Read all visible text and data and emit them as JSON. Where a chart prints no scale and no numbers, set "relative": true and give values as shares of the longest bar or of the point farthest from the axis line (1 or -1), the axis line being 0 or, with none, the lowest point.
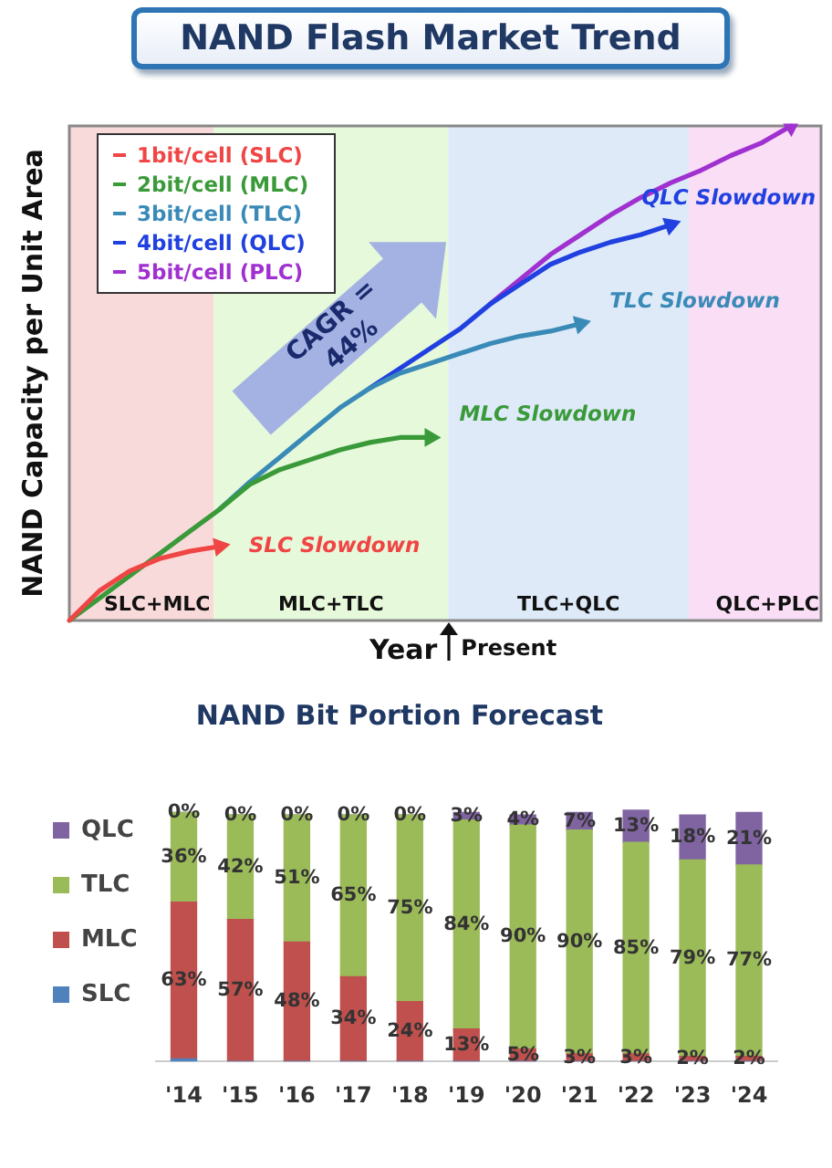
{
  "chart_data": [
    {
      "type": "line",
      "title": "NAND Flash Market Trend",
      "xlabel": "Year",
      "ylabel": "NAND Capacity per Unit Area",
      "relative": true,
      "tick_labels": false,
      "grid": false,
      "legend": "top left",
      "marker": "none",
      "line_style": "solid",
      "categories": [
        null,
        null,
        null,
        null,
        null,
        null,
        null,
        null,
        null,
        null,
        null,
        null,
        null,
        null,
        null,
        null,
        null,
        null,
        null,
        null,
        null,
        null,
        null,
        null,
        null,
        null
      ],
      "series": [
        {
          "name": "1bit/cell (SLC)",
          "color": "#f04545",
          "values": [
            0,
            0.06,
            0.1,
            0.125,
            0.14,
            0.15,
            null,
            null,
            null,
            null,
            null,
            null,
            null,
            null,
            null,
            null,
            null,
            null,
            null,
            null,
            null,
            null,
            null,
            null,
            null,
            null
          ]
        },
        {
          "name": "2bit/cell (MLC)",
          "color": "#3a9a3a",
          "values": [
            0,
            0.045,
            0.09,
            0.135,
            0.18,
            0.225,
            0.275,
            0.305,
            0.325,
            0.345,
            0.36,
            0.37,
            0.37,
            null,
            null,
            null,
            null,
            null,
            null,
            null,
            null,
            null,
            null,
            null,
            null,
            null
          ]
        },
        {
          "name": "3bit/cell (TLC)",
          "color": "#3a8ab8",
          "values": [
            null,
            null,
            null,
            null,
            null,
            0.225,
            0.28,
            0.33,
            0.38,
            0.43,
            0.47,
            0.5,
            0.52,
            0.54,
            0.56,
            0.575,
            0.585,
            0.6,
            null,
            null,
            null,
            null,
            null,
            null,
            null,
            null
          ]
        },
        {
          "name": "4bit/cell (QLC)",
          "color": "#2040e0",
          "values": [
            null,
            null,
            null,
            null,
            null,
            null,
            null,
            null,
            null,
            null,
            0.47,
            0.51,
            0.55,
            0.59,
            0.64,
            0.68,
            0.72,
            0.745,
            0.765,
            0.78,
            0.8,
            null,
            null,
            null,
            null,
            null
          ]
        },
        {
          "name": "5bit/cell (PLC)",
          "color": "#a030d0",
          "values": [
            null,
            null,
            null,
            null,
            null,
            null,
            null,
            null,
            null,
            null,
            null,
            null,
            null,
            null,
            0.64,
            0.69,
            0.74,
            0.78,
            0.82,
            0.855,
            0.885,
            0.91,
            0.94,
            0.965,
            1.0,
            null
          ]
        }
      ],
      "annotations": [
        "SLC Slowdown",
        "MLC Slowdown",
        "TLC Slowdown",
        "QLC Slowdown",
        "CAGR = 44%",
        "SLC+MLC",
        "MLC+TLC",
        "TLC+QLC",
        "QLC+PLC",
        "Present"
      ]
    },
    {
      "type": "bar",
      "title": "NAND Bit Portion Forecast",
      "categories": [
        "'14",
        "'15",
        "'16",
        "'17",
        "'18",
        "'19",
        "'20",
        "'21",
        "'22",
        "'23",
        "'24"
      ],
      "stacked": true,
      "legend": "left",
      "grid": false,
      "tick_labels": "x",
      "series": [
        {
          "name": "SLC",
          "color": "#4f81bd",
          "values": [
            1,
            0,
            0,
            0,
            0,
            0,
            0,
            0,
            0,
            0,
            0
          ]
        },
        {
          "name": "MLC",
          "color": "#c0504d",
          "values": [
            63,
            57,
            48,
            34,
            24,
            13,
            5,
            3,
            3,
            2,
            2
          ],
          "value_labels": [
            "63%",
            "57%",
            "48%",
            "34%",
            "24%",
            "13%",
            "5%",
            "3%",
            "3%",
            "2%",
            "2%"
          ]
        },
        {
          "name": "TLC",
          "color": "#9bbb59",
          "values": [
            36,
            42,
            51,
            65,
            75,
            84,
            90,
            90,
            85,
            79,
            77
          ],
          "value_labels": [
            "36%",
            "42%",
            "51%",
            "65%",
            "75%",
            "84%",
            "90%",
            "90%",
            "85%",
            "79%",
            "77%"
          ]
        },
        {
          "name": "QLC",
          "color": "#8064a2",
          "values": [
            0,
            0,
            0,
            0,
            0,
            3,
            4,
            7,
            13,
            18,
            21
          ],
          "value_labels": [
            "0%",
            "0%",
            "0%",
            "0%",
            "0%",
            "3%",
            "4%",
            "7%",
            "13%",
            "18%",
            "21%"
          ]
        }
      ]
    }
  ]
}
